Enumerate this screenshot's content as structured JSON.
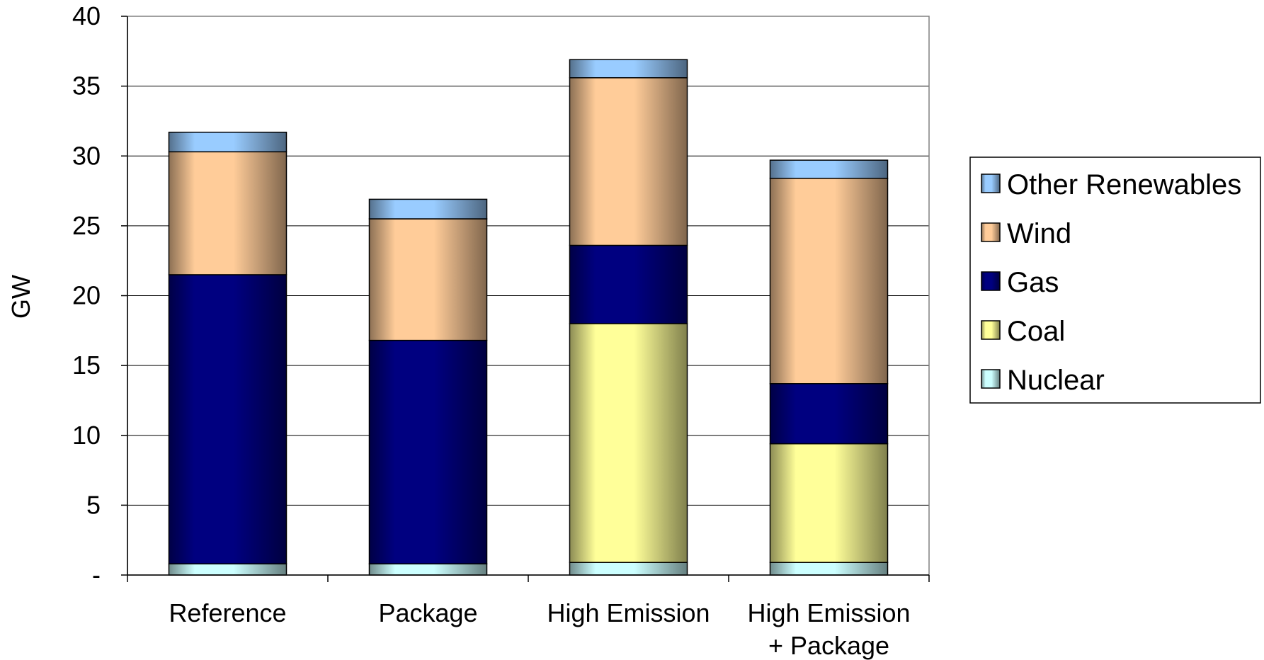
{
  "chart_data": {
    "type": "bar",
    "stacked": true,
    "title": "",
    "xlabel": "",
    "ylabel": "GW",
    "ylim": [
      0,
      40
    ],
    "yticks": [
      {
        "value": 0,
        "label": "-"
      },
      {
        "value": 5,
        "label": "5"
      },
      {
        "value": 10,
        "label": "10"
      },
      {
        "value": 15,
        "label": "15"
      },
      {
        "value": 20,
        "label": "20"
      },
      {
        "value": 25,
        "label": "25"
      },
      {
        "value": 30,
        "label": "30"
      },
      {
        "value": 35,
        "label": "35"
      },
      {
        "value": 40,
        "label": "40"
      }
    ],
    "grid": true,
    "legend_position": "right",
    "categories": [
      [
        "Reference"
      ],
      [
        "Package"
      ],
      [
        "High Emission"
      ],
      [
        "High Emission",
        "+ Package"
      ]
    ],
    "series": [
      {
        "name": "Nuclear",
        "color": "#ccffff",
        "values": [
          0.8,
          0.8,
          0.9,
          0.9
        ]
      },
      {
        "name": "Coal",
        "color": "#ffff99",
        "values": [
          0.0,
          0.0,
          17.1,
          8.5
        ]
      },
      {
        "name": "Gas",
        "color": "#000080",
        "values": [
          20.7,
          16.0,
          5.6,
          4.3
        ]
      },
      {
        "name": "Wind",
        "color": "#ffcc99",
        "values": [
          8.8,
          8.7,
          12.0,
          14.7
        ]
      },
      {
        "name": "Other Renewables",
        "color": "#99ccff",
        "values": [
          1.4,
          1.4,
          1.3,
          1.3
        ]
      }
    ]
  }
}
